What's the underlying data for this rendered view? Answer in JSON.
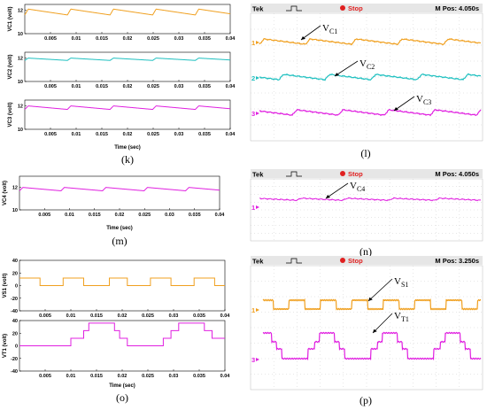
{
  "colors": {
    "vc1": "#f0a020",
    "vc2": "#1fc0c0",
    "vc3": "#e020e0",
    "scope_grid": "#cfcfcf",
    "scope_bar": "#e6e6e6",
    "stop_dot": "#e02020"
  },
  "chart_data": [
    {
      "id": "k",
      "type": "line",
      "panel_label": "(k)",
      "xlabel": "Time (sec)",
      "xlim": [
        0,
        0.04
      ],
      "x_ticks": [
        "0.005",
        "0.01",
        "0.015",
        "0.02",
        "0.025",
        "0.03",
        "0.035",
        "0.04"
      ],
      "subplots": [
        {
          "ylabel": "VC1 (volt)",
          "ylim": [
            10,
            12.5
          ],
          "y_ticks": [
            "12",
            "10"
          ],
          "series": [
            {
              "name": "VC1",
              "ripple": [
                11.6,
                12.1
              ],
              "period": 0.0083
            }
          ]
        },
        {
          "ylabel": "VC2 (volt)",
          "ylim": [
            10,
            12.5
          ],
          "y_ticks": [
            "12",
            "10"
          ],
          "series": [
            {
              "name": "VC2",
              "ripple": [
                11.8,
                12.0
              ],
              "period": 0.0083
            }
          ]
        },
        {
          "ylabel": "VC3 (volt)",
          "ylim": [
            10,
            12.5
          ],
          "y_ticks": [
            "12",
            "10"
          ],
          "series": [
            {
              "name": "VC3",
              "ripple": [
                11.7,
                12.0
              ],
              "period": 0.0083
            }
          ]
        }
      ]
    },
    {
      "id": "l",
      "type": "oscilloscope",
      "panel_label": "(l)",
      "brand": "Tek",
      "status": "Stop",
      "mpos": "M Pos: 4.050s",
      "traces": [
        {
          "name": "VC1",
          "label_main": "V",
          "label_sub": "C1",
          "marker": "1"
        },
        {
          "name": "VC2",
          "label_main": "V",
          "label_sub": "C2",
          "marker": "2"
        },
        {
          "name": "VC3",
          "label_main": "V",
          "label_sub": "C3",
          "marker": "3"
        }
      ]
    },
    {
      "id": "m",
      "type": "line",
      "panel_label": "(m)",
      "xlabel": "Time (sec)",
      "ylabel": "VC4 (volt)",
      "xlim": [
        0,
        0.04
      ],
      "ylim": [
        10,
        13
      ],
      "x_ticks": [
        "0.005",
        "0.01",
        "0.015",
        "0.02",
        "0.025",
        "0.03",
        "0.035",
        "0.04"
      ],
      "y_ticks": [
        "12",
        "10"
      ],
      "series": [
        {
          "name": "VC4",
          "ripple": [
            11.7,
            12.0
          ],
          "period": 0.0083
        }
      ]
    },
    {
      "id": "n",
      "type": "oscilloscope",
      "panel_label": "(n)",
      "brand": "Tek",
      "status": "Stop",
      "mpos": "M Pos: 4.050s",
      "traces": [
        {
          "name": "VC4",
          "label_main": "V",
          "label_sub": "C4",
          "marker": "1"
        }
      ]
    },
    {
      "id": "o",
      "type": "line",
      "panel_label": "(o)",
      "xlabel": "Time (sec)",
      "xlim": [
        0,
        0.04
      ],
      "x_ticks": [
        "0.005",
        "0.01",
        "0.015",
        "0.02",
        "0.025",
        "0.03",
        "0.035",
        "0.04"
      ],
      "subplots": [
        {
          "ylabel": "VS1 (volt)",
          "ylim": [
            -40,
            40
          ],
          "y_ticks": [
            "40",
            "20",
            "0",
            "-20",
            "-40"
          ],
          "series": [
            {
              "name": "VS1",
              "levels": [
                0,
                12
              ],
              "type": "square"
            }
          ]
        },
        {
          "ylabel": "VT1 (volt)",
          "ylim": [
            -40,
            40
          ],
          "y_ticks": [
            "40",
            "20",
            "0",
            "-20",
            "-40"
          ],
          "series": [
            {
              "name": "VT1",
              "levels": [
                0,
                12,
                24,
                36
              ],
              "type": "staircase"
            }
          ]
        }
      ]
    },
    {
      "id": "p",
      "type": "oscilloscope",
      "panel_label": "(p)",
      "brand": "Tek",
      "status": "Stop",
      "mpos": "M Pos: 3.250s",
      "traces": [
        {
          "name": "VS1",
          "label_main": "V",
          "label_sub": "S1",
          "marker": "1"
        },
        {
          "name": "VT1",
          "label_main": "V",
          "label_sub": "T1",
          "marker": "3"
        }
      ]
    }
  ]
}
